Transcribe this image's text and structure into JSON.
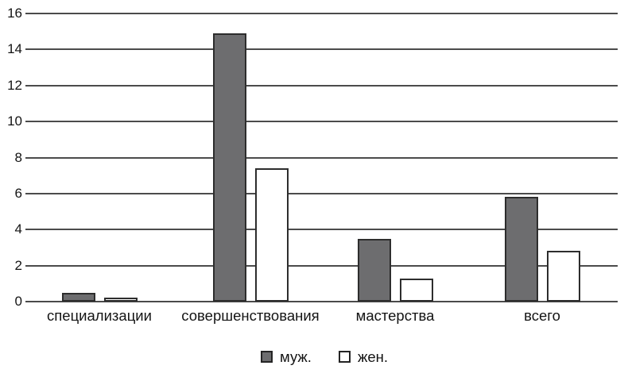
{
  "chart_data": {
    "type": "bar",
    "title": "",
    "xlabel": "",
    "ylabel": "",
    "categories": [
      "специализации",
      "совершенствования",
      "мастерства",
      "всего"
    ],
    "series": [
      {
        "name": "муж.",
        "color": "#6d6d6f",
        "values": [
          0.5,
          14.9,
          3.5,
          5.8
        ]
      },
      {
        "name": "жен.",
        "color": "#ffffff",
        "values": [
          0.2,
          7.4,
          1.3,
          2.8
        ]
      }
    ],
    "ylim": [
      0,
      16
    ],
    "yticks": [
      0,
      2,
      4,
      6,
      8,
      10,
      12,
      14,
      16
    ],
    "grid": true,
    "legend_position": "bottom",
    "colors": {
      "gridline": "#4b4b4b",
      "bar_border": "#2d2d2d",
      "text": "#141414",
      "background": "#ffffff"
    }
  }
}
